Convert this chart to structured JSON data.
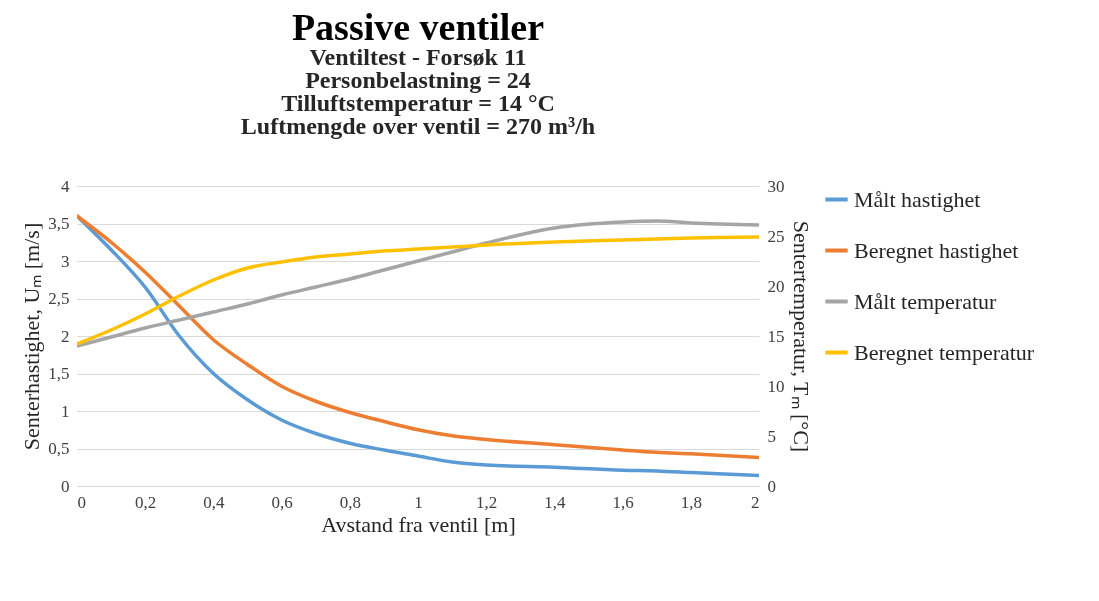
{
  "chart_data": {
    "type": "line",
    "title": "Passive ventiler",
    "subtitle": "Ventiltest - Forsøk 11",
    "annotations": [
      "Personbelastning = 24",
      "Tilluftstemperatur = 14 °C",
      "Luftmengde over ventil = 270 m³/h"
    ],
    "xlabel": "Avstand fra ventil [m]",
    "ylabel": "Senterhastighet, Uₘ [m/s]",
    "y2label": "Sentertemperatur, Tₘ [°C]",
    "x": [
      0,
      0.1,
      0.2,
      0.3,
      0.4,
      0.5,
      0.6,
      0.7,
      0.8,
      0.9,
      1.0,
      1.1,
      1.2,
      1.4,
      1.6,
      1.7,
      1.8,
      2.0
    ],
    "series": [
      {
        "name": "Målt hastighet",
        "color": "#5b9bd5",
        "values": [
          3.6,
          3.15,
          2.65,
          2.0,
          1.5,
          1.15,
          0.88,
          0.7,
          0.57,
          0.48,
          0.4,
          0.32,
          0.28,
          0.25,
          0.21,
          0.2,
          0.18,
          0.14
        ]
      },
      {
        "name": "Beregnet hastighet",
        "color": "#ed7d31",
        "values": [
          3.6,
          3.25,
          2.85,
          2.4,
          1.95,
          1.62,
          1.33,
          1.13,
          0.98,
          0.86,
          0.75,
          0.67,
          0.62,
          0.55,
          0.48,
          0.45,
          0.43,
          0.38
        ]
      },
      {
        "name": "Målt temperatur",
        "color": "#a5a5a5",
        "axis": "y2",
        "values": [
          14,
          14.9,
          15.8,
          16.6,
          17.4,
          18.2,
          19.1,
          19.9,
          20.7,
          21.6,
          22.5,
          23.4,
          24.3,
          25.8,
          26.4,
          26.5,
          26.3,
          26.1
        ]
      },
      {
        "name": "Beregnet temperatur",
        "color": "#ffc000",
        "axis": "y2",
        "values": [
          14.2,
          15.6,
          17.2,
          19,
          20.6,
          21.8,
          22.4,
          22.9,
          23.2,
          23.5,
          23.7,
          23.9,
          24.1,
          24.4,
          24.6,
          24.7,
          24.8,
          24.9
        ]
      }
    ],
    "xlim": [
      0,
      2
    ],
    "xticks": [
      0,
      {
        "value": 0.2,
        "label": "0,2"
      },
      {
        "value": 0.4,
        "label": "0,4"
      },
      {
        "value": 0.6,
        "label": "0,6"
      },
      {
        "value": 0.8,
        "label": "0,8"
      },
      1,
      {
        "value": 1.2,
        "label": "1,2"
      },
      {
        "value": 1.4,
        "label": "1,4"
      },
      {
        "value": 1.6,
        "label": "1,6"
      },
      {
        "value": 1.8,
        "label": "1,8"
      },
      2
    ],
    "ylim": [
      0,
      4
    ],
    "yticks": [
      0,
      {
        "value": 0.5,
        "label": "0,5"
      },
      1,
      {
        "value": 1.5,
        "label": "1,5"
      },
      2,
      {
        "value": 2.5,
        "label": "2,5"
      },
      3,
      {
        "value": 3.5,
        "label": "3,5"
      },
      4
    ],
    "y2lim": [
      0,
      30
    ],
    "y2ticks": [
      0,
      5,
      10,
      15,
      20,
      25,
      30
    ],
    "grid": "y",
    "legend": "right"
  }
}
